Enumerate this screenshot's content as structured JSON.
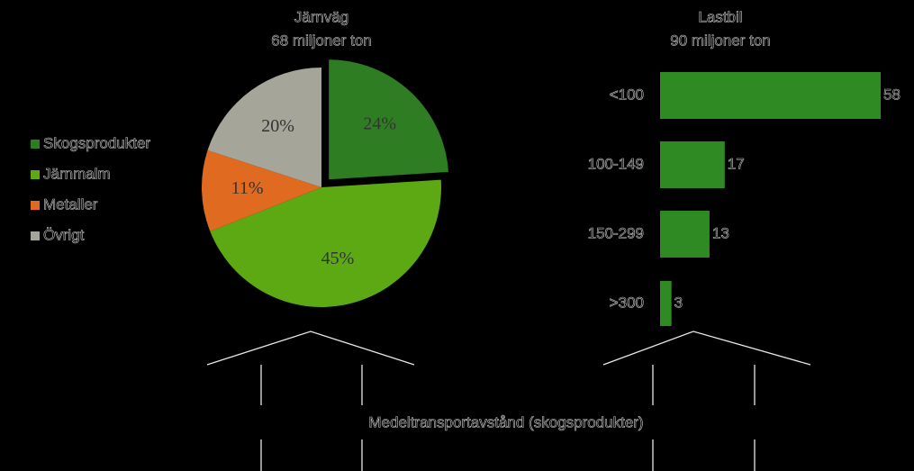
{
  "chart_data": [
    {
      "type": "pie",
      "title": "Järnväg",
      "subtitle": "68 miljoner ton",
      "categories": [
        "Skogsprodukter",
        "Järnmalm",
        "Metaller",
        "Övrigt"
      ],
      "values": [
        24,
        45,
        11,
        20
      ],
      "value_labels": [
        "24%",
        "45%",
        "11%",
        "20%"
      ],
      "colors": [
        "#2f7d22",
        "#5ca914",
        "#e06a20",
        "#a5a599"
      ],
      "legend": "left"
    },
    {
      "type": "bar",
      "orientation": "horizontal",
      "title": "Lastbil",
      "subtitle": "90 miljoner ton",
      "categories": [
        "<100",
        "100-149",
        "150-299",
        ">300"
      ],
      "values": [
        58,
        17,
        13,
        3
      ],
      "color": "#2f8a24",
      "xlabel": "Medeltransportavstånd (skogsprodukter)"
    }
  ]
}
